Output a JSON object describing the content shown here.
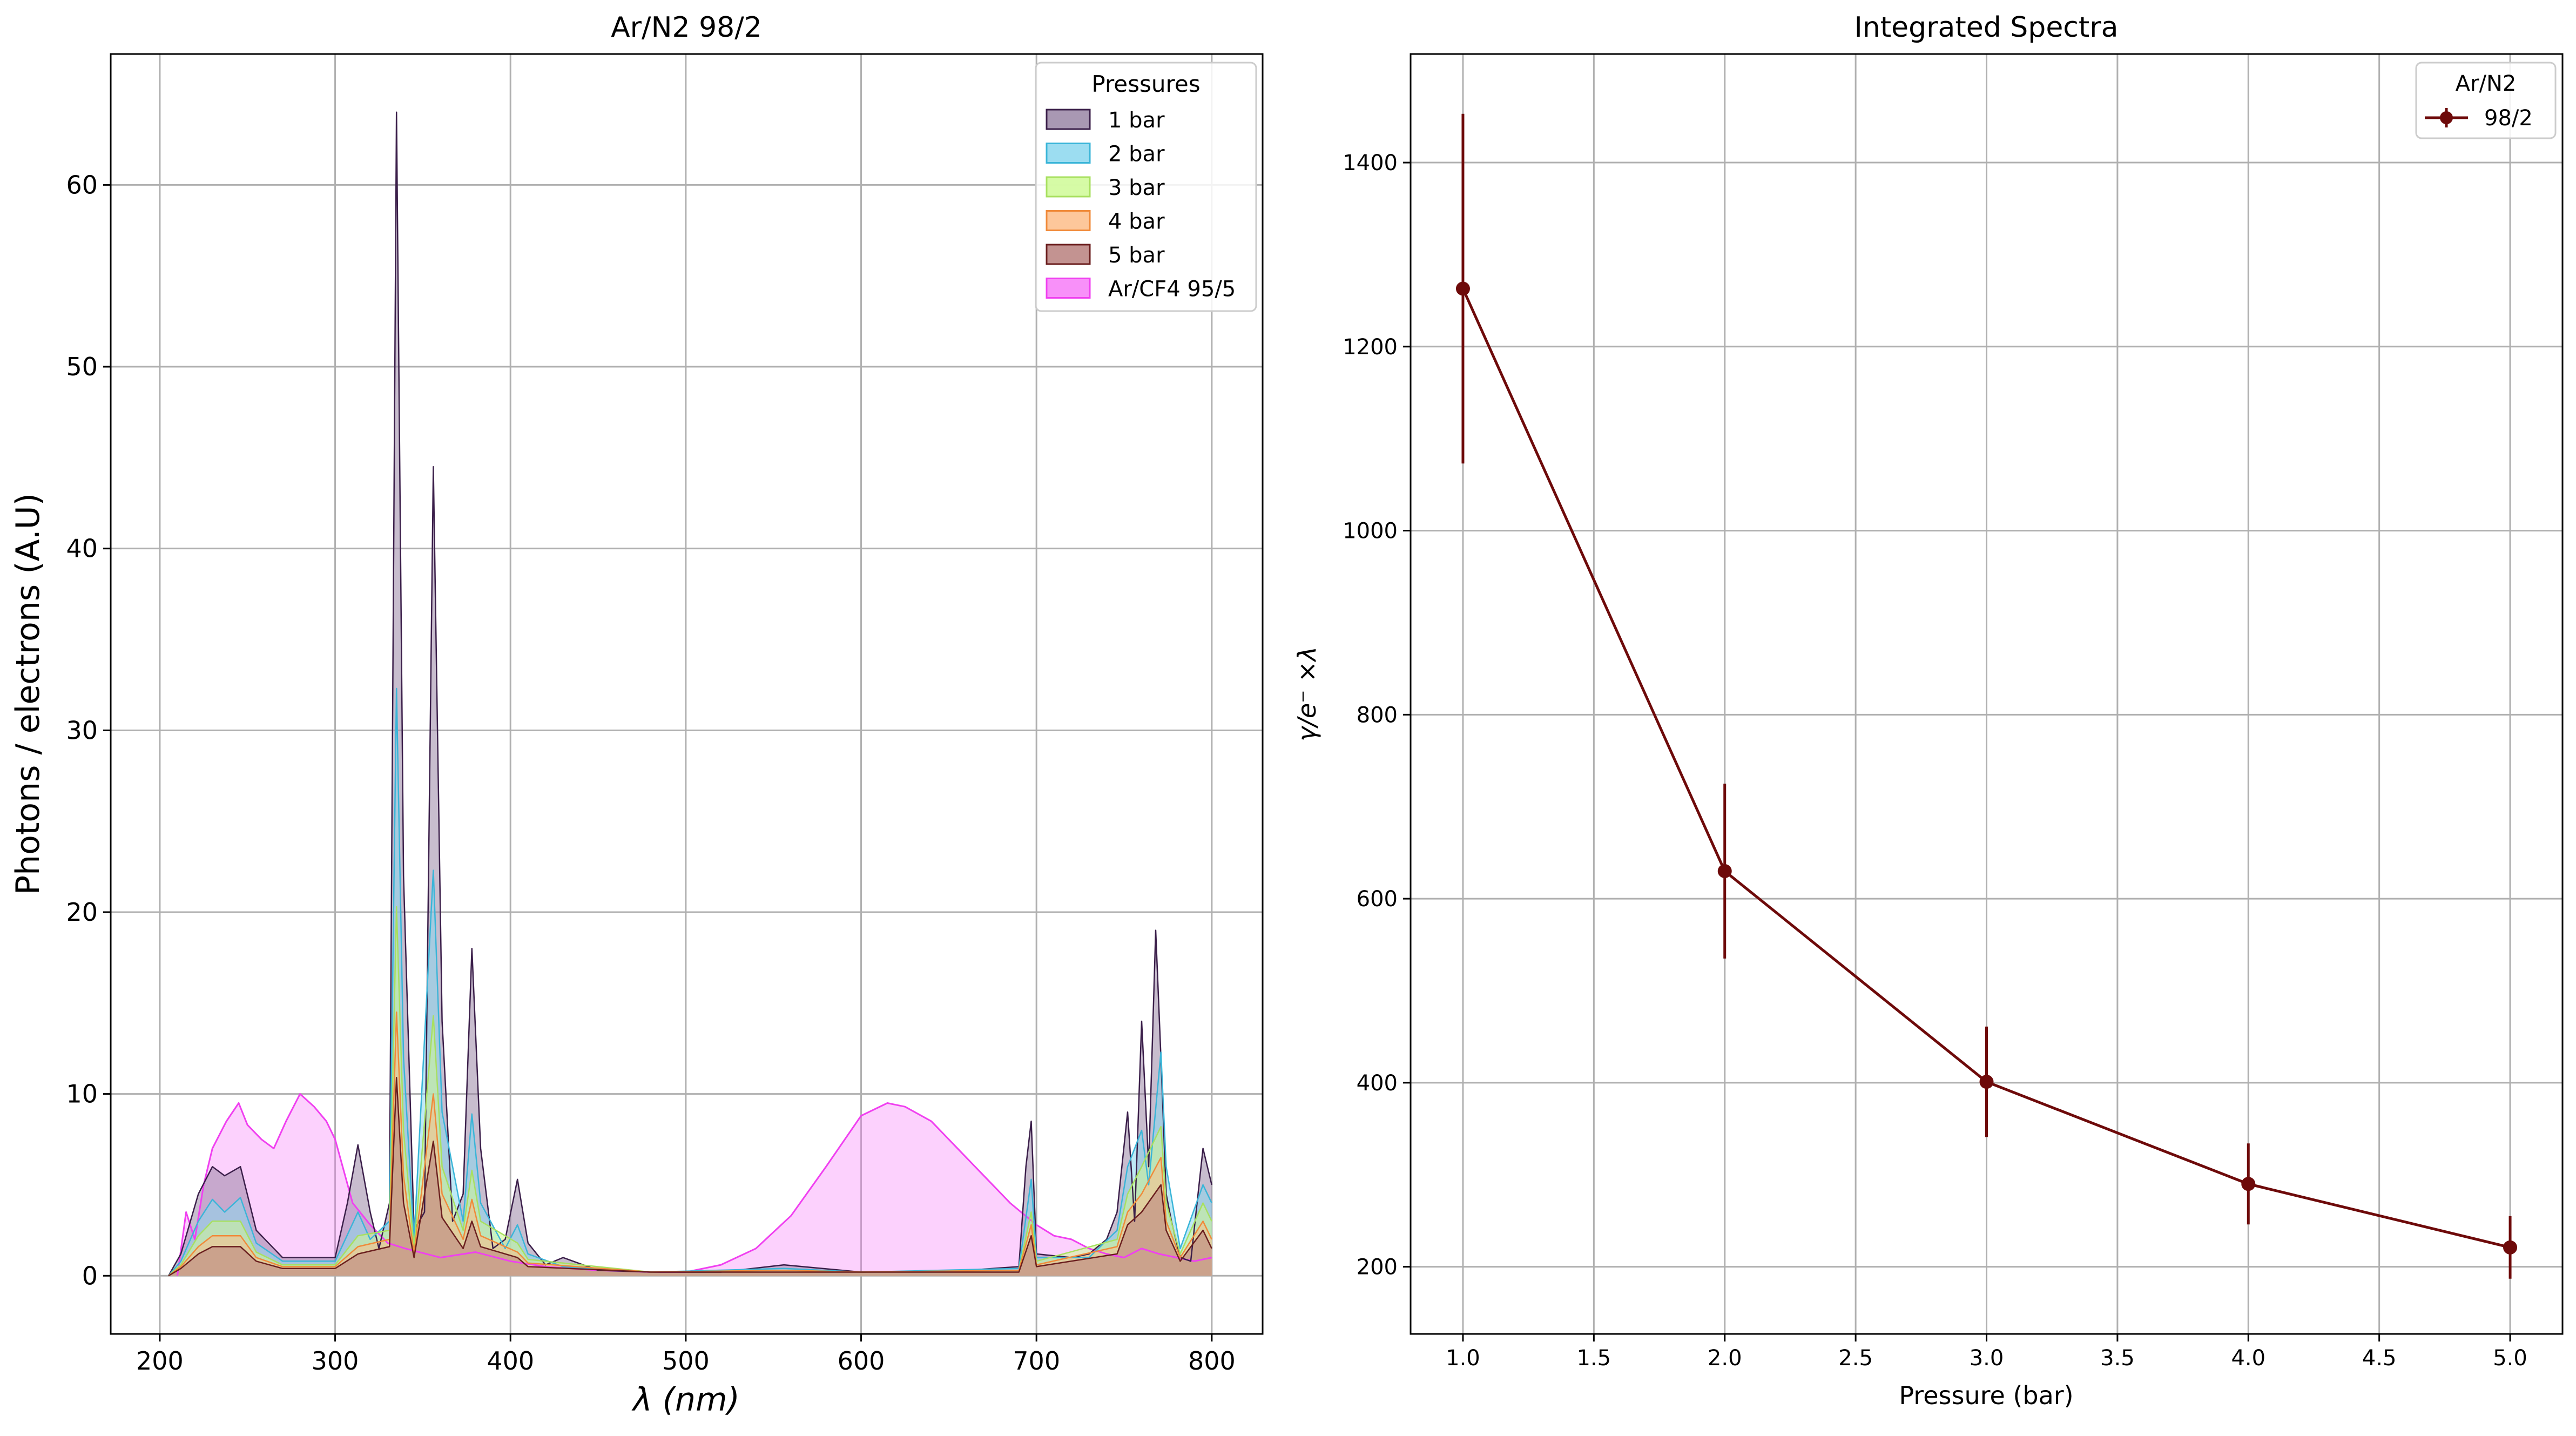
{
  "chart_data": [
    {
      "type": "line",
      "title": "Ar/N2 98/2",
      "xlabel": "λ (nm)",
      "ylabel": "Photons / electrons (A.U)",
      "xlim": [
        172,
        829
      ],
      "ylim": [
        -3.2,
        67.2
      ],
      "xticks": [
        200,
        300,
        400,
        500,
        600,
        700,
        800
      ],
      "yticks": [
        0,
        10,
        20,
        30,
        40,
        50,
        60
      ],
      "grid": true,
      "legend": {
        "title": "Pressures",
        "placement": "top-right"
      },
      "series": [
        {
          "name": "1 bar",
          "color": "#3b1f4a",
          "fill": "#9a86a6",
          "x": [
            205,
            212,
            222,
            230,
            237,
            246,
            255,
            270,
            300,
            307,
            313,
            320,
            325,
            331,
            335,
            339,
            345,
            351,
            356,
            361,
            367,
            373,
            378,
            383,
            390,
            397,
            404,
            410,
            420,
            430,
            450,
            480,
            520,
            556,
            600,
            660,
            690,
            694,
            697,
            700,
            720,
            730,
            740,
            746,
            752,
            756,
            760,
            764,
            768,
            771,
            774,
            777,
            782,
            788,
            795,
            800
          ],
          "y": [
            0,
            1.2,
            4.5,
            6.0,
            5.5,
            6.0,
            2.5,
            1.0,
            1.0,
            4.0,
            7.2,
            3.5,
            1.5,
            4.0,
            64.0,
            22.0,
            2.5,
            3.5,
            44.5,
            14.0,
            3.0,
            4.5,
            18.0,
            7.0,
            1.5,
            2.0,
            5.3,
            1.8,
            0.6,
            1.0,
            0.3,
            0.2,
            0.2,
            0.6,
            0.2,
            0.3,
            0.5,
            6.0,
            8.5,
            1.2,
            1.0,
            1.2,
            2.0,
            3.5,
            9.0,
            3.0,
            14.0,
            6.0,
            19.0,
            12.0,
            4.5,
            3.0,
            1.0,
            0.8,
            7.0,
            5.0
          ]
        },
        {
          "name": "2 bar",
          "color": "#3ab5d8",
          "fill": "#8bd7ef",
          "x": [
            205,
            212,
            222,
            230,
            237,
            246,
            255,
            270,
            300,
            313,
            320,
            331,
            335,
            339,
            345,
            356,
            361,
            373,
            378,
            383,
            397,
            404,
            410,
            430,
            480,
            556,
            600,
            690,
            697,
            700,
            730,
            746,
            752,
            760,
            764,
            771,
            774,
            782,
            795,
            800
          ],
          "y": [
            0,
            0.8,
            3.0,
            4.2,
            3.5,
            4.3,
            1.8,
            0.8,
            0.8,
            3.5,
            2.0,
            3.0,
            32.3,
            12.0,
            2.0,
            22.3,
            9.0,
            3.0,
            8.9,
            4.0,
            1.5,
            2.8,
            1.2,
            0.5,
            0.2,
            0.4,
            0.2,
            0.4,
            5.3,
            1.0,
            1.0,
            2.5,
            6.0,
            8.0,
            5.0,
            12.3,
            6.0,
            1.5,
            5.0,
            4.0
          ]
        },
        {
          "name": "3 bar",
          "color": "#a8e060",
          "fill": "#cffa96",
          "x": [
            205,
            212,
            222,
            230,
            246,
            255,
            270,
            300,
            313,
            331,
            335,
            339,
            345,
            356,
            361,
            373,
            378,
            383,
            404,
            410,
            480,
            556,
            600,
            690,
            697,
            700,
            746,
            752,
            760,
            771,
            774,
            782,
            795,
            800
          ],
          "y": [
            0,
            0.6,
            2.2,
            3.0,
            3.0,
            1.3,
            0.6,
            0.6,
            2.2,
            2.5,
            20.3,
            8.0,
            1.5,
            14.3,
            6.0,
            2.5,
            5.8,
            3.0,
            1.8,
            0.9,
            0.2,
            0.3,
            0.2,
            0.3,
            3.5,
            0.8,
            2.0,
            4.5,
            6.0,
            8.2,
            4.0,
            1.2,
            4.0,
            3.0
          ]
        },
        {
          "name": "4 bar",
          "color": "#f08a3a",
          "fill": "#fdbd8a",
          "x": [
            205,
            212,
            222,
            230,
            246,
            255,
            270,
            300,
            313,
            331,
            335,
            339,
            345,
            356,
            361,
            373,
            378,
            383,
            404,
            410,
            480,
            556,
            600,
            690,
            697,
            700,
            746,
            752,
            760,
            771,
            774,
            782,
            795,
            800
          ],
          "y": [
            0,
            0.5,
            1.6,
            2.2,
            2.2,
            1.0,
            0.5,
            0.5,
            1.6,
            2.0,
            14.5,
            5.5,
            1.2,
            10.0,
            4.5,
            2.0,
            4.2,
            2.2,
            1.3,
            0.7,
            0.2,
            0.3,
            0.2,
            0.3,
            2.8,
            0.6,
            1.6,
            3.5,
            4.5,
            6.5,
            3.0,
            1.0,
            3.0,
            2.0
          ]
        },
        {
          "name": "5 bar",
          "color": "#6b1f1f",
          "fill": "#b9807e",
          "x": [
            205,
            212,
            222,
            230,
            246,
            255,
            270,
            300,
            313,
            331,
            335,
            339,
            345,
            356,
            361,
            373,
            378,
            383,
            404,
            410,
            480,
            556,
            600,
            690,
            697,
            700,
            746,
            752,
            760,
            771,
            774,
            782,
            795,
            800
          ],
          "y": [
            0,
            0.4,
            1.2,
            1.6,
            1.6,
            0.8,
            0.4,
            0.4,
            1.2,
            1.6,
            10.9,
            4.0,
            1.0,
            7.4,
            3.2,
            1.5,
            3.0,
            1.6,
            1.0,
            0.5,
            0.2,
            0.2,
            0.2,
            0.2,
            2.2,
            0.5,
            1.2,
            2.8,
            3.5,
            5.0,
            2.5,
            0.8,
            2.5,
            1.5
          ]
        },
        {
          "name": "Ar/CF4 95/5",
          "color": "#f040f0",
          "fill": "#f77cf8",
          "x": [
            210,
            215,
            220,
            225,
            230,
            238,
            245,
            250,
            258,
            265,
            272,
            280,
            288,
            295,
            300,
            310,
            320,
            330,
            340,
            360,
            380,
            400,
            420,
            450,
            480,
            500,
            520,
            540,
            560,
            580,
            600,
            615,
            625,
            640,
            655,
            670,
            685,
            700,
            710,
            720,
            730,
            740,
            750,
            760,
            770,
            780,
            790,
            800
          ],
          "y": [
            0,
            3.5,
            2.0,
            5.0,
            7.0,
            8.5,
            9.5,
            8.3,
            7.5,
            7.0,
            8.5,
            10.0,
            9.3,
            8.5,
            7.5,
            4.0,
            2.8,
            1.8,
            1.5,
            1.0,
            1.3,
            0.8,
            0.5,
            0.3,
            0.2,
            0.2,
            0.6,
            1.5,
            3.3,
            6.0,
            8.8,
            9.5,
            9.3,
            8.5,
            7.0,
            5.5,
            4.0,
            2.8,
            2.2,
            2.0,
            1.5,
            1.2,
            1.0,
            1.5,
            1.2,
            1.0,
            0.8,
            1.0
          ]
        }
      ]
    },
    {
      "type": "line",
      "title": "Integrated Spectra",
      "xlabel": "Pressure (bar)",
      "ylabel": "γ/e⁻ ×λ",
      "xlim": [
        0.8,
        5.2
      ],
      "ylim": [
        127,
        1518
      ],
      "xticks": [
        1.0,
        1.5,
        2.0,
        2.5,
        3.0,
        3.5,
        4.0,
        4.5,
        5.0
      ],
      "yticks": [
        200,
        400,
        600,
        800,
        1000,
        1200,
        1400
      ],
      "grid": true,
      "legend": {
        "title": "Ar/N2",
        "placement": "top-right"
      },
      "series": [
        {
          "name": "98/2",
          "color": "#6e0a0a",
          "x": [
            1.0,
            2.0,
            3.0,
            4.0,
            5.0
          ],
          "y": [
            1263,
            630,
            401,
            290,
            221
          ],
          "yerr": [
            190,
            95,
            60,
            44,
            34
          ]
        }
      ]
    }
  ]
}
